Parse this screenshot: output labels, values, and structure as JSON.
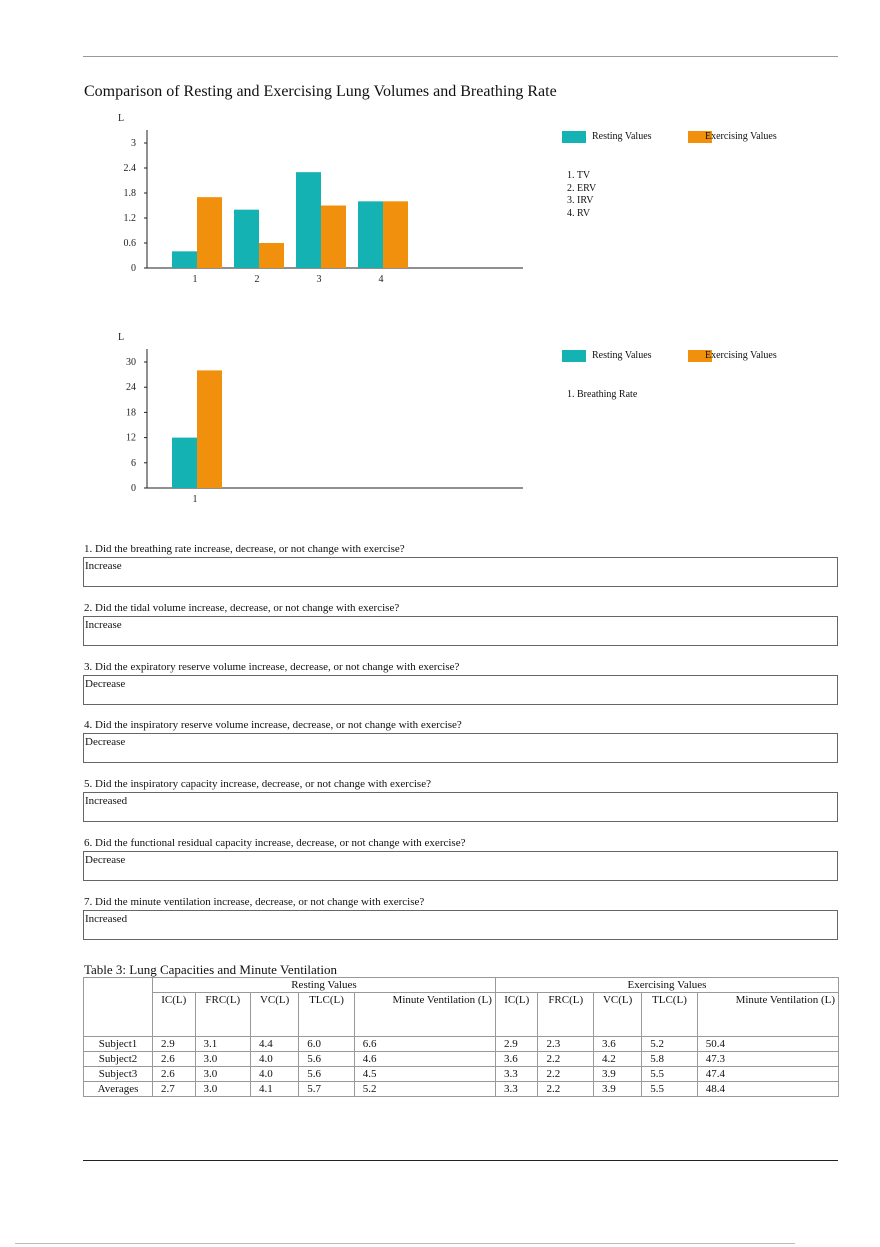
{
  "title": "Comparison of Resting and Exercising Lung Volumes and Breathing Rate",
  "colors": {
    "resting": "#14b2b2",
    "exercising": "#f0900c"
  },
  "chart_data": [
    {
      "type": "bar",
      "ylabel": "L",
      "ylim": [
        0,
        3
      ],
      "yticks": [
        "0",
        "0.6",
        "1.2",
        "1.8",
        "2.4",
        "3"
      ],
      "categories": [
        "1",
        "2",
        "3",
        "4"
      ],
      "series": [
        {
          "name": "Resting Values",
          "values": [
            0.4,
            1.4,
            2.3,
            1.6
          ]
        },
        {
          "name": "Exercising Values",
          "values": [
            1.7,
            0.6,
            1.5,
            1.6
          ]
        }
      ],
      "legend": "right",
      "key": [
        "1. TV",
        "2. ERV",
        "3. IRV",
        "4. RV"
      ]
    },
    {
      "type": "bar",
      "ylabel": "L",
      "ylim": [
        0,
        30
      ],
      "yticks": [
        "0",
        "6",
        "12",
        "18",
        "24",
        "30"
      ],
      "categories": [
        "1"
      ],
      "series": [
        {
          "name": "Resting Values",
          "values": [
            12
          ]
        },
        {
          "name": "Exercising Values",
          "values": [
            28
          ]
        }
      ],
      "legend": "right",
      "key": [
        "1. Breathing Rate"
      ]
    }
  ],
  "questions": [
    {
      "q": "1. Did the breathing rate increase, decrease, or not change with exercise?",
      "a": "Increase"
    },
    {
      "q": "2. Did the tidal volume increase, decrease, or not change with exercise?",
      "a": "Increase"
    },
    {
      "q": "3. Did the expiratory reserve volume increase, decrease, or not change with exercise?",
      "a": "Decrease"
    },
    {
      "q": "4. Did the inspiratory reserve volume increase, decrease, or not change with exercise?",
      "a": "Decrease"
    },
    {
      "q": "5. Did the inspiratory capacity increase, decrease, or not change with exercise?",
      "a": "Increased"
    },
    {
      "q": "6. Did the functional residual capacity increase, decrease, or not change with exercise?",
      "a": "Decrease"
    },
    {
      "q": "7. Did the minute ventilation increase, decrease, or not change with exercise?",
      "a": "Increased"
    }
  ],
  "table": {
    "caption": "Table 3: Lung Capacities and Minute Ventilation",
    "groups": [
      "Resting Values",
      "Exercising Values"
    ],
    "columns": [
      "IC(L)",
      "FRC(L)",
      "VC(L)",
      "TLC(L)",
      "Minute Ventilation (L)",
      "IC(L)",
      "FRC(L)",
      "VC(L)",
      "TLC(L)",
      "Minute Ventilation (L)"
    ],
    "rows": [
      {
        "label": "Subject1",
        "cells": [
          "2.9",
          "3.1",
          "4.4",
          "6.0",
          "6.6",
          "2.9",
          "2.3",
          "3.6",
          "5.2",
          "50.4"
        ]
      },
      {
        "label": "Subject2",
        "cells": [
          "2.6",
          "3.0",
          "4.0",
          "5.6",
          "4.6",
          "3.6",
          "2.2",
          "4.2",
          "5.8",
          "47.3"
        ]
      },
      {
        "label": "Subject3",
        "cells": [
          "2.6",
          "3.0",
          "4.0",
          "5.6",
          "4.5",
          "3.3",
          "2.2",
          "3.9",
          "5.5",
          "47.4"
        ]
      },
      {
        "label": "Averages",
        "cells": [
          "2.7",
          "3.0",
          "4.1",
          "5.7",
          "5.2",
          "3.3",
          "2.2",
          "3.9",
          "5.5",
          "48.4"
        ]
      }
    ]
  }
}
